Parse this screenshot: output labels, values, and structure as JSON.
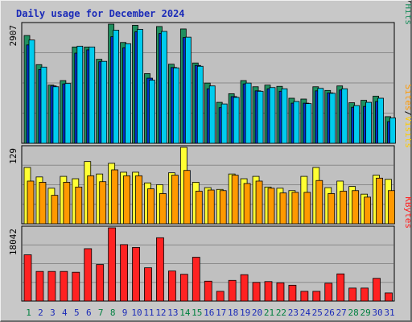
{
  "chart_data": {
    "type": "bar",
    "title": "Daily usage for December 2024",
    "categories": [
      "1",
      "2",
      "3",
      "4",
      "5",
      "6",
      "7",
      "8",
      "9",
      "10",
      "11",
      "12",
      "13",
      "14",
      "15",
      "16",
      "17",
      "18",
      "19",
      "20",
      "21",
      "22",
      "23",
      "24",
      "25",
      "26",
      "27",
      "28",
      "29",
      "30",
      "31"
    ],
    "weekend_days": [
      "1",
      "7",
      "8",
      "14",
      "15",
      "21",
      "22",
      "28",
      "29"
    ],
    "panels": [
      {
        "id": "pages_files_hits",
        "max_label": "2907",
        "max": 2907,
        "series": [
          {
            "name": "Hits",
            "color": "#1f8f5f",
            "values": [
              2630,
              1920,
              1420,
              1530,
              2350,
              2350,
              2050,
              2907,
              2460,
              2880,
              1700,
              2850,
              1930,
              2790,
              1960,
              1470,
              1000,
              1210,
              1530,
              1380,
              1420,
              1390,
              1100,
              1080,
              1380,
              1290,
              1400,
              990,
              1050,
              1150,
              650
            ]
          },
          {
            "name": "Files",
            "color": "#0033cc",
            "values": [
              2400,
              1800,
              1400,
              1450,
              2200,
              2280,
              1990,
              2600,
              2330,
              2720,
              1590,
              2680,
              1850,
              2580,
              1900,
              1330,
              870,
              1140,
              1450,
              1280,
              1330,
              1270,
              980,
              980,
              1280,
              1230,
              1300,
              880,
              900,
              1020,
              530
            ]
          },
          {
            "name": "Pages",
            "color": "#00ccee",
            "values": [
              2520,
              1860,
              1380,
              1460,
              2370,
              2350,
              2000,
              2760,
              2430,
              2780,
              1540,
              2730,
              1840,
              2590,
              1880,
              1400,
              960,
              1120,
              1470,
              1270,
              1360,
              1330,
              1020,
              970,
              1340,
              1220,
              1330,
              920,
              1000,
              1100,
              620
            ]
          }
        ],
        "legend_segments": [
          {
            "text": "Pages",
            "color": "#00ccee"
          },
          {
            "text": "/",
            "color": "#000000"
          },
          {
            "text": "Files",
            "color": "#0033cc"
          },
          {
            "text": "/",
            "color": "#000000"
          },
          {
            "text": "Hits",
            "color": "#1f8f5f"
          }
        ]
      },
      {
        "id": "sites_visits",
        "max_label": "129",
        "max": 129,
        "series": [
          {
            "name": "Visits",
            "color": "#ffff33",
            "values": [
              95,
              79,
              60,
              80,
              76,
              105,
              84,
              102,
              87,
              87,
              69,
              66,
              86,
              129,
              70,
              61,
              58,
              84,
              76,
              80,
              62,
              60,
              56,
              80,
              95,
              61,
              72,
              63,
              50,
              82,
              75
            ]
          },
          {
            "name": "Sites",
            "color": "#ff9900",
            "values": [
              72,
              70,
              48,
              70,
              62,
              81,
              71,
              91,
              81,
              81,
              59,
              51,
              82,
              90,
              55,
              57,
              56,
              82,
              68,
              72,
              60,
              52,
              53,
              53,
              73,
              51,
              55,
              56,
              45,
              77,
              56
            ]
          }
        ],
        "legend_segments": [
          {
            "text": "Sites",
            "color": "#ff9900"
          },
          {
            "text": "/",
            "color": "#000000"
          },
          {
            "text": "Visits",
            "color": "#ffcc00"
          }
        ]
      },
      {
        "id": "kbytes",
        "max_label": "18042",
        "max": 18042,
        "series": [
          {
            "name": "KBytes",
            "color": "#ff2222",
            "values": [
              11400,
              7300,
              7300,
              7300,
              7100,
              12900,
              9000,
              18042,
              13900,
              13200,
              8200,
              15600,
              7400,
              6600,
              10800,
              4900,
              2400,
              5100,
              6500,
              4600,
              4800,
              4500,
              3900,
              2400,
              2400,
              4400,
              6700,
              3200,
              3200,
              5600,
              2000
            ]
          }
        ],
        "legend_segments": [
          {
            "text": "KBytes",
            "color": "#ff2222"
          }
        ]
      }
    ]
  },
  "colors": {
    "background": "#c8c8c8",
    "plot_background": "#c0c0c0",
    "title": "#1a2ab8",
    "gridline": "#8a8a8a",
    "weekday_label": "#1a2ab8",
    "weekend_label": "#008040"
  }
}
